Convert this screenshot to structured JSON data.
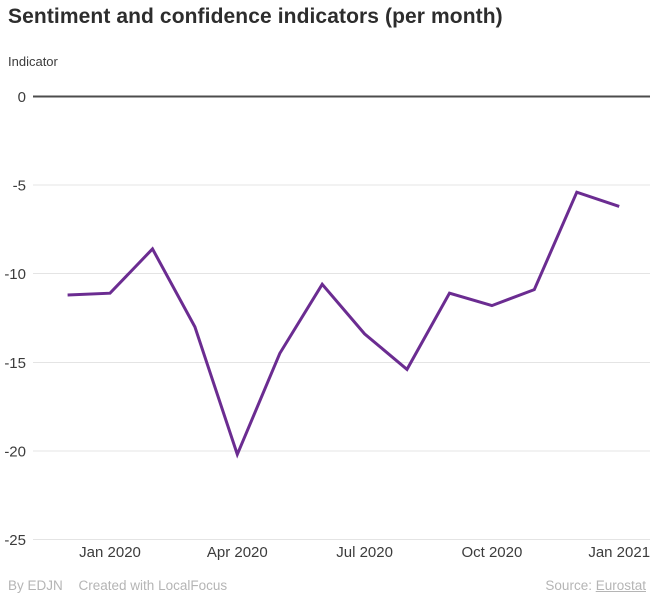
{
  "title": "Sentiment and confidence indicators (per month)",
  "y_axis_title": "Indicator",
  "footer": {
    "byline": "By EDJN",
    "created": "Created with LocalFocus",
    "source_label": "Source:",
    "source_link": "Eurostat"
  },
  "colors": {
    "line": "#6b2c91",
    "zero_line": "#4c4c4c",
    "gridline": "#e4e4e4",
    "title_text": "#2d2d2d",
    "axis_text": "#3c3c3c",
    "footer_text": "#b5b5b5",
    "background": "#ffffff"
  },
  "chart_data": {
    "type": "line",
    "title": "Sentiment and confidence indicators (per month)",
    "xlabel": "",
    "ylabel": "Indicator",
    "x": [
      "Dec 2019",
      "Jan 2020",
      "Feb 2020",
      "Mar 2020",
      "Apr 2020",
      "May 2020",
      "Jun 2020",
      "Jul 2020",
      "Aug 2020",
      "Sep 2020",
      "Oct 2020",
      "Nov 2020",
      "Dec 2020",
      "Jan 2021"
    ],
    "series": [
      {
        "name": "Indicator",
        "values": [
          -11.2,
          -11.1,
          -8.6,
          -13.0,
          -20.2,
          -14.5,
          -10.6,
          -13.4,
          -15.4,
          -11.1,
          -11.8,
          -10.9,
          -5.4,
          -6.2
        ]
      }
    ],
    "x_tick_labels": [
      "Jan 2020",
      "Apr 2020",
      "Jul 2020",
      "Oct 2020",
      "Jan 2021"
    ],
    "x_tick_indices": [
      1,
      4,
      7,
      10,
      13
    ],
    "y_ticks": [
      0,
      -5,
      -10,
      -15,
      -20,
      -25
    ],
    "ylim": [
      -25,
      0
    ],
    "grid": true,
    "legend": false
  }
}
